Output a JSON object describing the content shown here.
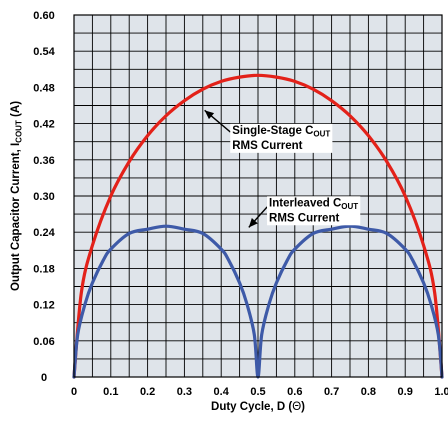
{
  "chart_data": {
    "type": "line",
    "title": "",
    "xlabel": {
      "main": "Duty Cycle, D (",
      "symbol": "Θ",
      "end": ")"
    },
    "ylabel": {
      "main": "Output Capacitor Current, I",
      "sub": "COUT",
      "end": " (A)"
    },
    "xlim": [
      0,
      1.0
    ],
    "ylim": [
      0,
      0.6
    ],
    "x_ticks": [
      0,
      0.1,
      0.2,
      0.3,
      0.4,
      0.5,
      0.6,
      0.7,
      0.8,
      0.9,
      1.0
    ],
    "x_tick_labels": [
      "0",
      "0.1",
      "0.2",
      "0.3",
      "0.4",
      "0.5",
      "0.6",
      "0.7",
      "0.8",
      "0.9",
      "1.0"
    ],
    "y_ticks": [
      0,
      0.06,
      0.12,
      0.18,
      0.24,
      0.3,
      0.36,
      0.42,
      0.48,
      0.54,
      0.6
    ],
    "y_tick_labels": [
      "0",
      "0.06",
      "0.12",
      "0.18",
      "0.24",
      "0.30",
      "0.36",
      "0.42",
      "0.48",
      "0.54",
      "0.60"
    ],
    "x_grid_step": 0.05,
    "y_grid_step": 0.03,
    "grid": true,
    "series": [
      {
        "name": "Single-Stage COUT RMS Current",
        "color": "#e32119",
        "x": [
          0,
          0.02,
          0.05,
          0.1,
          0.15,
          0.2,
          0.25,
          0.3,
          0.35,
          0.4,
          0.45,
          0.5,
          0.55,
          0.6,
          0.65,
          0.7,
          0.75,
          0.8,
          0.85,
          0.9,
          0.95,
          0.98,
          1.0
        ],
        "y": [
          0,
          0.14,
          0.218,
          0.3,
          0.357,
          0.4,
          0.433,
          0.458,
          0.477,
          0.49,
          0.497,
          0.5,
          0.497,
          0.49,
          0.477,
          0.458,
          0.433,
          0.4,
          0.357,
          0.3,
          0.218,
          0.14,
          0
        ]
      },
      {
        "name": "Interleaved COUT RMS Current",
        "color": "#3e5aa8",
        "x": [
          0,
          0.01,
          0.03,
          0.05,
          0.08,
          0.1,
          0.15,
          0.2,
          0.25,
          0.3,
          0.35,
          0.4,
          0.42,
          0.45,
          0.47,
          0.49,
          0.5,
          0.51,
          0.53,
          0.55,
          0.58,
          0.6,
          0.65,
          0.7,
          0.75,
          0.8,
          0.85,
          0.9,
          0.92,
          0.95,
          0.97,
          0.99,
          1.0
        ],
        "y": [
          0,
          0.07,
          0.121,
          0.156,
          0.194,
          0.212,
          0.238,
          0.245,
          0.25,
          0.245,
          0.238,
          0.212,
          0.194,
          0.156,
          0.121,
          0.07,
          0,
          0.07,
          0.121,
          0.156,
          0.194,
          0.212,
          0.238,
          0.245,
          0.25,
          0.245,
          0.238,
          0.212,
          0.194,
          0.156,
          0.121,
          0.07,
          0
        ]
      }
    ],
    "annotations": [
      {
        "series": "Single-Stage COUT RMS Current",
        "line1_main": "Single-Stage C",
        "line1_sub": "OUT",
        "line2": "RMS Current",
        "arrow_to": [
          0.355,
          0.442
        ],
        "arrow_from": [
          0.425,
          0.406
        ],
        "text_at": [
          0.43,
          0.403
        ]
      },
      {
        "series": "Interleaved COUT RMS Current",
        "line1_main": "Interleaved C",
        "line1_sub": "OUT",
        "line2": "RMS Current",
        "arrow_to": [
          0.475,
          0.248
        ],
        "arrow_from": [
          0.525,
          0.282
        ],
        "text_at": [
          0.53,
          0.283
        ]
      }
    ]
  }
}
